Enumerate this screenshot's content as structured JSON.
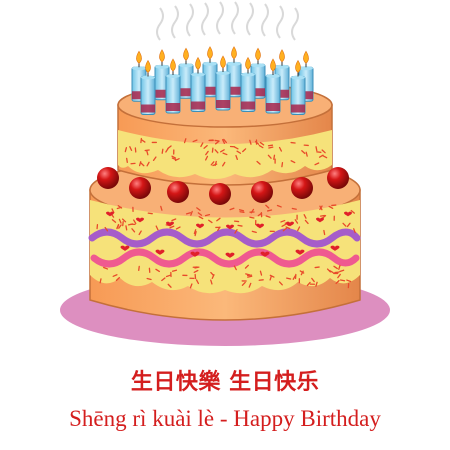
{
  "caption": {
    "chinese": "生日快樂 生日快乐",
    "pinyin_english": "Shēng rì kuài lè - Happy Birthday"
  },
  "illustration": {
    "subject": "birthday-cake",
    "tiers": 2,
    "candles_back_row": 8,
    "candles_front_row": 7,
    "colors": {
      "cake": "#f7a25e",
      "cake_dark": "#e0884a",
      "frosting": "#f6e27a",
      "sprinkles": "#e84a2a",
      "heart": "#e0202a",
      "wave_purple": "#a65cc9",
      "wave_pink": "#ef5a90",
      "cherry": "#c81414",
      "candle": "#8fd3ee",
      "flame": "#ffb020",
      "plate": "#dd8fc0",
      "caption": "#d41e1e"
    }
  }
}
